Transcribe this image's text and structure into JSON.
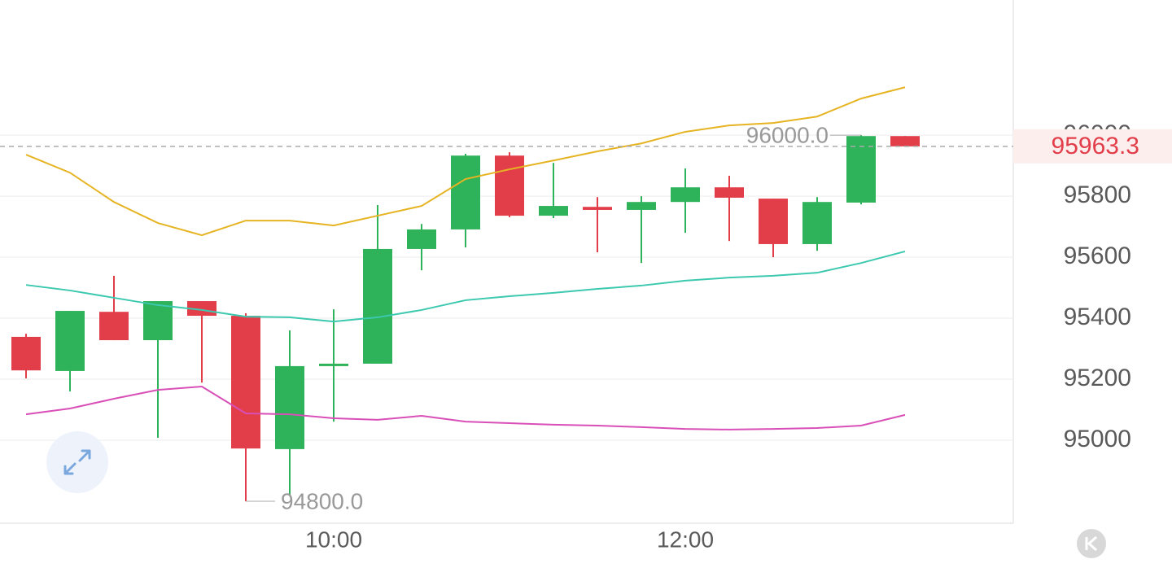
{
  "chart_data": {
    "type": "candlestick",
    "categories": [
      null,
      null,
      null,
      null,
      null,
      null,
      null,
      "10:00",
      null,
      null,
      null,
      null,
      null,
      null,
      null,
      "12:00",
      null,
      null,
      null,
      null,
      null
    ],
    "open": [
      95339,
      95227,
      95421,
      95328,
      95456,
      95408,
      94971,
      95243,
      95251,
      95627,
      95691,
      95933,
      95736,
      95765,
      95755,
      95781,
      95829,
      95792,
      95643,
      95779,
      95997
    ],
    "high": [
      95349,
      95424,
      95539,
      95456,
      95456,
      95416,
      95360,
      95429,
      95771,
      95709,
      95939,
      95944,
      95909,
      95797,
      95800,
      95891,
      95867,
      95792,
      95797,
      96000,
      95997
    ],
    "low": [
      95203,
      95160,
      95328,
      95008,
      95189,
      94800,
      94821,
      95061,
      95251,
      95557,
      95632,
      95731,
      95728,
      95616,
      95581,
      95680,
      95653,
      95600,
      95621,
      95773,
      95963.3
    ],
    "close": [
      95229,
      95424,
      95328,
      95456,
      95408,
      94973,
      95243,
      95251,
      95627,
      95691,
      95933,
      95736,
      95768,
      95755,
      95781,
      95829,
      95795,
      95643,
      95781,
      95997,
      95963.3
    ],
    "up_color": "#2eb25a",
    "down_color": "#e23e4a",
    "overlays": [
      {
        "color": "#e6b422",
        "values": [
          95936,
          95877,
          95781,
          95712,
          95672,
          95720,
          95720,
          95704,
          95736,
          95768,
          95856,
          95888,
          95917,
          95947,
          95973,
          96011,
          96032,
          96040,
          96061,
          96120,
          96157
        ]
      },
      {
        "color": "#3cc9b0",
        "values": [
          95509,
          95491,
          95467,
          95443,
          95427,
          95405,
          95403,
          95389,
          95403,
          95427,
          95459,
          95472,
          95483,
          95496,
          95507,
          95523,
          95533,
          95539,
          95549,
          95581,
          95619
        ]
      },
      {
        "color": "#d94fb8",
        "values": [
          95085,
          95104,
          95136,
          95165,
          95176,
          95088,
          95085,
          95072,
          95067,
          95080,
          95061,
          95056,
          95051,
          95048,
          95043,
          95037,
          95035,
          95037,
          95040,
          95048,
          95083
        ]
      }
    ],
    "ylim": [
      94728,
      96443
    ],
    "yticks": [
      95000,
      95200,
      95400,
      95600,
      95800,
      96000
    ],
    "grid": true,
    "last_price": 95963.3,
    "high_label": {
      "value": 96000,
      "label": "96000.0"
    },
    "low_label": {
      "value": 94800,
      "label": "94800.0"
    }
  }
}
